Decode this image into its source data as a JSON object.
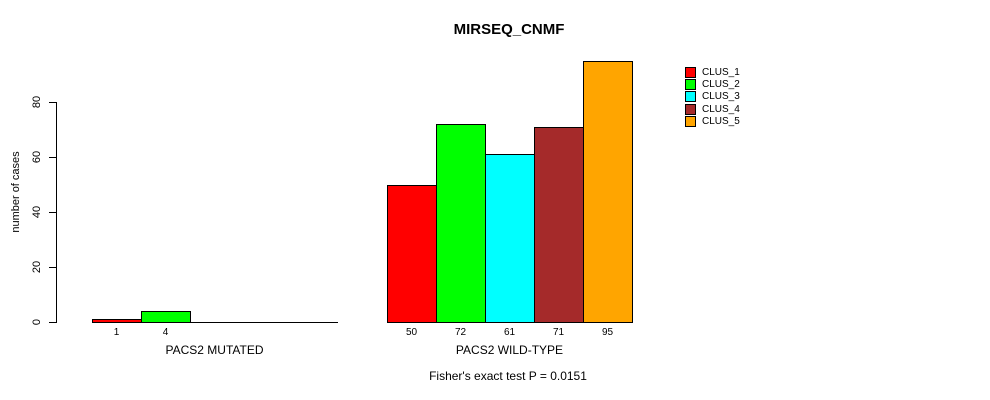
{
  "chart_data": {
    "type": "bar",
    "title": "MIRSEQ_CNMF",
    "ylabel": "number of cases",
    "yticks": [
      0,
      20,
      40,
      60,
      80
    ],
    "ylim": [
      0,
      95
    ],
    "grid": false,
    "legend_position": "right",
    "legend": [
      {
        "label": "CLUS_1",
        "color": "#FF0000"
      },
      {
        "label": "CLUS_2",
        "color": "#00FF00"
      },
      {
        "label": "CLUS_3",
        "color": "#00FFFF"
      },
      {
        "label": "CLUS_4",
        "color": "#A52A2A"
      },
      {
        "label": "CLUS_5",
        "color": "#FFA500"
      }
    ],
    "groups": [
      {
        "label": "PACS2 MUTATED",
        "values": [
          1,
          4,
          0,
          0,
          0
        ],
        "bar_labels": [
          "1",
          "4"
        ]
      },
      {
        "label": "PACS2 WILD-TYPE",
        "values": [
          50,
          72,
          61,
          71,
          95
        ],
        "bar_labels": [
          "50",
          "72",
          "61",
          "71",
          "95"
        ]
      }
    ],
    "annotation": "Fisher's exact test P = 0.0151",
    "axis_color": "#000000"
  }
}
